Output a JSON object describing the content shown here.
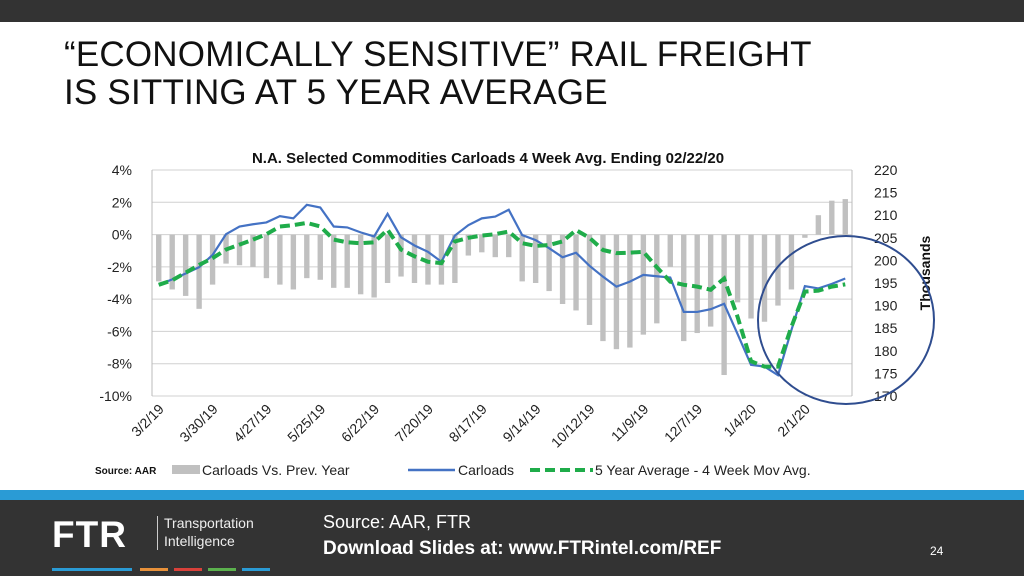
{
  "slide": {
    "title_line1": "“ECONOMICALLY SENSITIVE” RAIL FREIGHT",
    "title_line2": "IS SITTING AT 5 YEAR AVERAGE",
    "chart_source": "Source: AAR",
    "footer_source": "Source: AAR, FTR",
    "download": "Download Slides at: www.FTRintel.com/REF",
    "page_number": "24",
    "logo_text": "FTR",
    "logo_tagline1": "Transportation",
    "logo_tagline2": "Intelligence",
    "colors": {
      "topbar": "#333333",
      "stripe": "#2a9bd5",
      "footer": "#333333",
      "bars": "#c0c0c0",
      "carloads": "#4472c4",
      "five_year": "#1fac4a",
      "circle": "#2f4d8f"
    }
  },
  "chart_data": {
    "type": "bar+line",
    "title": "N.A. Selected Commodities Carloads 4 Week Avg. Ending 02/22/20",
    "y_left": {
      "min": -10,
      "max": 4,
      "step": 2,
      "format": "percent",
      "ticks": [
        "4%",
        "2%",
        "0%",
        "-2%",
        "-4%",
        "-6%",
        "-8%",
        "-10%"
      ]
    },
    "y_right": {
      "min": 170,
      "max": 220,
      "step": 5,
      "label": "Thousands",
      "ticks": [
        "220",
        "215",
        "210",
        "205",
        "200",
        "195",
        "190",
        "185",
        "180",
        "175",
        "170"
      ]
    },
    "x_tick_labels": [
      "3/2/19",
      "3/30/19",
      "4/27/19",
      "5/25/19",
      "6/22/19",
      "7/20/19",
      "8/17/19",
      "9/14/19",
      "10/12/19",
      "11/9/19",
      "12/7/19",
      "1/4/20",
      "2/1/20"
    ],
    "x_tick_every": 4,
    "grid": true,
    "legend_placement": "bottom",
    "annotation": "circle around final weeks",
    "series": [
      {
        "name": "Carloads Vs. Prev. Year",
        "type": "bar",
        "axis": "left",
        "values": [
          -2.9,
          -3.4,
          -3.8,
          -4.6,
          -3.1,
          -1.8,
          -1.9,
          -2.0,
          -2.7,
          -3.1,
          -3.4,
          -2.7,
          -2.8,
          -3.3,
          -3.3,
          -3.7,
          -3.9,
          -3.0,
          -2.6,
          -3.0,
          -3.1,
          -3.1,
          -3.0,
          -1.3,
          -1.1,
          -1.4,
          -1.4,
          -2.9,
          -3.0,
          -3.5,
          -4.3,
          -4.7,
          -5.6,
          -6.6,
          -7.1,
          -7.0,
          -6.2,
          -5.5,
          -2.0,
          -6.6,
          -6.1,
          -5.7,
          -8.7,
          -4.2,
          -5.2,
          -5.4,
          -4.4,
          -3.4,
          -0.2,
          1.2,
          2.1,
          2.2
        ]
      },
      {
        "name": "Carloads",
        "type": "line",
        "axis": "right",
        "values": [
          194.6,
          195.8,
          197.1,
          198.5,
          201.2,
          205.8,
          207.5,
          208.0,
          208.4,
          209.8,
          209.3,
          212.3,
          211.7,
          207.5,
          207.3,
          206.2,
          205.3,
          210.3,
          205.1,
          203.3,
          201.9,
          199.7,
          205.5,
          207.8,
          209.3,
          209.7,
          211.2,
          205.6,
          204.5,
          202.7,
          200.7,
          201.7,
          198.8,
          196.4,
          194.2,
          195.3,
          196.8,
          196.5,
          196.2,
          188.6,
          188.6,
          189.2,
          190.4,
          183.7,
          176.9,
          176.5,
          174.6,
          184.6,
          194.3,
          193.8,
          194.8,
          196.0
        ]
      },
      {
        "name": "5 Year Average - 4 Week Mov Avg.",
        "type": "line",
        "dash": true,
        "axis": "right",
        "values": [
          194.6,
          195.6,
          197.3,
          199.0,
          200.5,
          202.4,
          203.5,
          204.6,
          205.8,
          207.5,
          207.8,
          208.3,
          207.5,
          204.6,
          204.0,
          203.8,
          204.0,
          206.8,
          202.4,
          200.9,
          199.7,
          199.4,
          204.2,
          205.0,
          205.5,
          205.8,
          206.4,
          203.8,
          203.2,
          203.4,
          204.2,
          206.7,
          205.0,
          202.3,
          201.6,
          201.7,
          201.9,
          198.5,
          195.3,
          194.6,
          194.2,
          193.5,
          196.0,
          187.5,
          177.7,
          176.5,
          176.5,
          185.3,
          193.1,
          193.3,
          194.2,
          194.7
        ]
      }
    ]
  }
}
